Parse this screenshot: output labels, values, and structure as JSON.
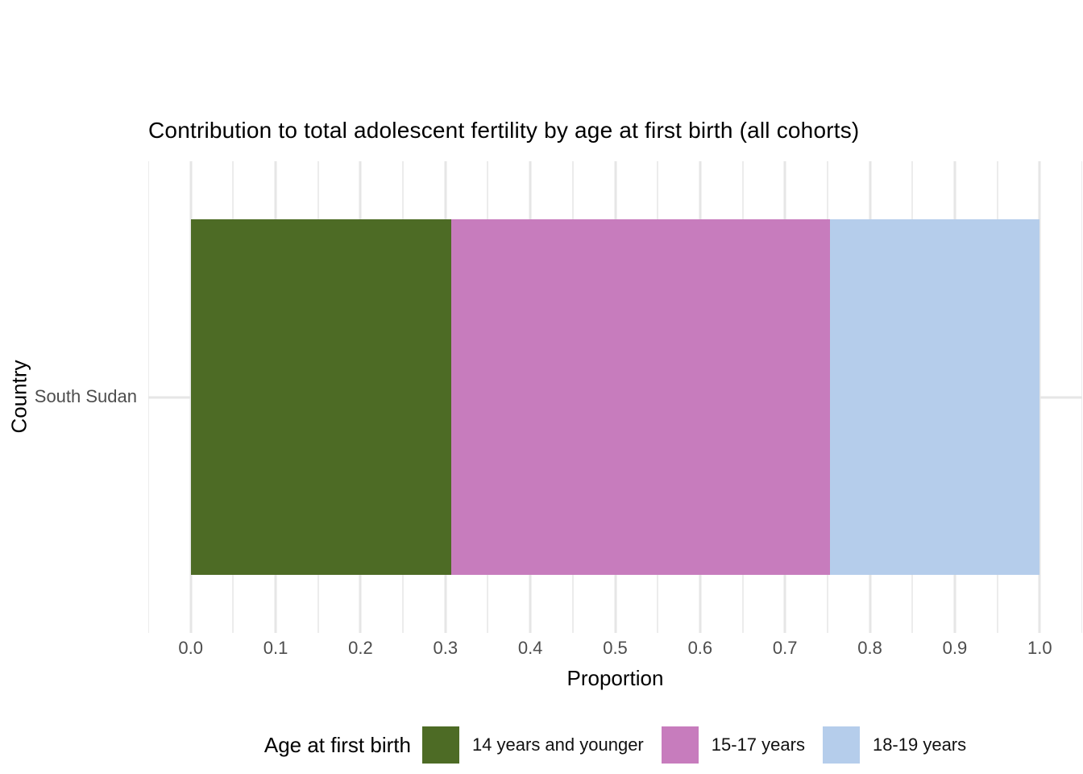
{
  "chart_data": {
    "type": "bar",
    "orientation": "horizontal",
    "stacked": true,
    "title": "Contribution to total adolescent fertility by age at first birth (all cohorts)",
    "xlabel": "Proportion",
    "ylabel": "Country",
    "categories": [
      "South Sudan"
    ],
    "series": [
      {
        "name": "14 years and younger",
        "values": [
          0.307
        ],
        "color": "#4D6B25"
      },
      {
        "name": "15-17 years",
        "values": [
          0.446
        ],
        "color": "#C77CBD"
      },
      {
        "name": "18-19 years",
        "values": [
          0.247
        ],
        "color": "#B5CDEB"
      }
    ],
    "xlim": [
      0,
      1
    ],
    "x_ticks": [
      0,
      0.1,
      0.2,
      0.3,
      0.4,
      0.5,
      0.6,
      0.7,
      0.8,
      0.9,
      1.0
    ],
    "x_tick_labels": [
      "0.0",
      "0.1",
      "0.2",
      "0.3",
      "0.4",
      "0.5",
      "0.6",
      "0.7",
      "0.8",
      "0.9",
      "1.0"
    ],
    "grid": true,
    "legend_position": "bottom",
    "colors": {
      "background": "#FFFFFF",
      "gridline_major": "#E6E6E6",
      "gridline_minor": "#ECECEC",
      "tick_text": "#4D4D4D",
      "title_text": "#000000"
    },
    "legend": {
      "title": "Age at first birth"
    }
  }
}
